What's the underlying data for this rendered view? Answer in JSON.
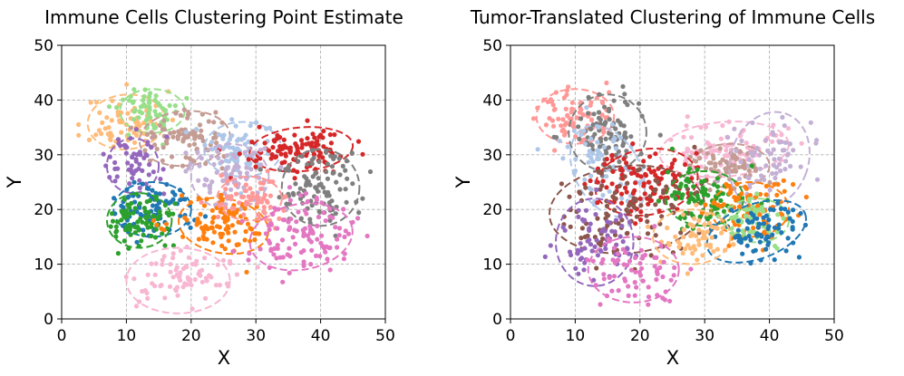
{
  "chart_data": [
    {
      "type": "scatter",
      "title": "Immune Cells Clustering Point Estimate",
      "xlabel": "X",
      "ylabel": "Y",
      "xlim": [
        0,
        50
      ],
      "ylim": [
        0,
        50
      ],
      "xticks": [
        "0",
        "10",
        "20",
        "30",
        "40",
        "50"
      ],
      "yticks": [
        "0",
        "10",
        "20",
        "30",
        "40",
        "50"
      ],
      "grid": true,
      "clusters": [
        {
          "color": "#ffbb78",
          "center": [
            10,
            36
          ],
          "rx": 6,
          "ry": 5,
          "rot": 5,
          "n": 70,
          "seed": 11
        },
        {
          "color": "#98df8a",
          "center": [
            14,
            38
          ],
          "rx": 5,
          "ry": 4,
          "rot": 0,
          "n": 60,
          "seed": 12
        },
        {
          "color": "#c49c94",
          "center": [
            19,
            33
          ],
          "rx": 7,
          "ry": 5,
          "rot": 5,
          "n": 85,
          "seed": 13
        },
        {
          "color": "#aec7e8",
          "center": [
            28,
            31
          ],
          "rx": 6,
          "ry": 5,
          "rot": 0,
          "n": 70,
          "seed": 14
        },
        {
          "color": "#d62728",
          "center": [
            37,
            31
          ],
          "rx": 8,
          "ry": 4,
          "rot": 5,
          "n": 110,
          "seed": 15
        },
        {
          "color": "#7f7f7f",
          "center": [
            40,
            24
          ],
          "rx": 6,
          "ry": 7,
          "rot": 0,
          "n": 100,
          "seed": 16
        },
        {
          "color": "#9467bd",
          "center": [
            11,
            28
          ],
          "rx": 4,
          "ry": 5,
          "rot": 0,
          "n": 55,
          "seed": 17
        },
        {
          "color": "#c5b0d5",
          "center": [
            26,
            26
          ],
          "rx": 6,
          "ry": 6,
          "rot": 0,
          "n": 80,
          "seed": 18
        },
        {
          "color": "#1f77b4",
          "center": [
            14,
            20
          ],
          "rx": 6,
          "ry": 5,
          "rot": 0,
          "n": 85,
          "seed": 19
        },
        {
          "color": "#2ca02c",
          "center": [
            12,
            18
          ],
          "rx": 5,
          "ry": 5,
          "rot": 0,
          "n": 80,
          "seed": 20
        },
        {
          "color": "#ff7f0e",
          "center": [
            25,
            17
          ],
          "rx": 7,
          "ry": 5,
          "rot": -10,
          "n": 100,
          "seed": 21
        },
        {
          "color": "#ff9896",
          "center": [
            29,
            22
          ],
          "rx": 5,
          "ry": 4,
          "rot": 0,
          "n": 60,
          "seed": 22
        },
        {
          "color": "#e377c2",
          "center": [
            37,
            15
          ],
          "rx": 8,
          "ry": 6,
          "rot": 10,
          "n": 110,
          "seed": 23
        },
        {
          "color": "#f7b6d2",
          "center": [
            18,
            7
          ],
          "rx": 8,
          "ry": 6,
          "rot": 0,
          "n": 80,
          "seed": 24
        }
      ]
    },
    {
      "type": "scatter",
      "title": "Tumor-Translated Clustering of Immune Cells",
      "xlabel": "X",
      "ylabel": "Y",
      "xlim": [
        0,
        50
      ],
      "ylim": [
        0,
        50
      ],
      "xticks": [
        "0",
        "10",
        "20",
        "30",
        "40",
        "50"
      ],
      "yticks": [
        "0",
        "10",
        "20",
        "30",
        "40",
        "50"
      ],
      "grid": true,
      "clusters": [
        {
          "color": "#ff9896",
          "center": [
            10,
            37
          ],
          "rx": 6,
          "ry": 5,
          "rot": 0,
          "n": 80,
          "seed": 31
        },
        {
          "color": "#7f7f7f",
          "center": [
            15,
            34
          ],
          "rx": 6,
          "ry": 7,
          "rot": 5,
          "n": 90,
          "seed": 32
        },
        {
          "color": "#aec7e8",
          "center": [
            15,
            27
          ],
          "rx": 5,
          "ry": 9,
          "rot": 30,
          "n": 70,
          "seed": 33
        },
        {
          "color": "#f7b6d2",
          "center": [
            33,
            31
          ],
          "rx": 10,
          "ry": 5,
          "rot": 5,
          "n": 90,
          "seed": 34
        },
        {
          "color": "#c49c94",
          "center": [
            34,
            28
          ],
          "rx": 6,
          "ry": 4,
          "rot": 0,
          "n": 70,
          "seed": 35
        },
        {
          "color": "#c5b0d5",
          "center": [
            40,
            29
          ],
          "rx": 6,
          "ry": 9,
          "rot": -20,
          "n": 70,
          "seed": 36
        },
        {
          "color": "#d62728",
          "center": [
            21,
            25
          ],
          "rx": 8,
          "ry": 6,
          "rot": 10,
          "n": 110,
          "seed": 37
        },
        {
          "color": "#8c564b",
          "center": [
            18,
            20
          ],
          "rx": 12,
          "ry": 8,
          "rot": 5,
          "n": 110,
          "seed": 38
        },
        {
          "color": "#2ca02c",
          "center": [
            30,
            22
          ],
          "rx": 6,
          "ry": 5,
          "rot": 0,
          "n": 90,
          "seed": 39
        },
        {
          "color": "#ff7f0e",
          "center": [
            37,
            20
          ],
          "rx": 6,
          "ry": 5,
          "rot": 0,
          "n": 90,
          "seed": 40
        },
        {
          "color": "#98df8a",
          "center": [
            38,
            18
          ],
          "rx": 5,
          "ry": 4,
          "rot": 0,
          "n": 55,
          "seed": 41
        },
        {
          "color": "#1f77b4",
          "center": [
            38,
            16
          ],
          "rx": 8,
          "ry": 5,
          "rot": 20,
          "n": 75,
          "seed": 42
        },
        {
          "color": "#ffbb78",
          "center": [
            28,
            15
          ],
          "rx": 6,
          "ry": 5,
          "rot": 0,
          "n": 60,
          "seed": 43
        },
        {
          "color": "#9467bd",
          "center": [
            13,
            14
          ],
          "rx": 6,
          "ry": 8,
          "rot": 0,
          "n": 70,
          "seed": 44
        },
        {
          "color": "#e377c2",
          "center": [
            19,
            9
          ],
          "rx": 7,
          "ry": 6,
          "rot": 0,
          "n": 70,
          "seed": 45
        }
      ]
    }
  ]
}
